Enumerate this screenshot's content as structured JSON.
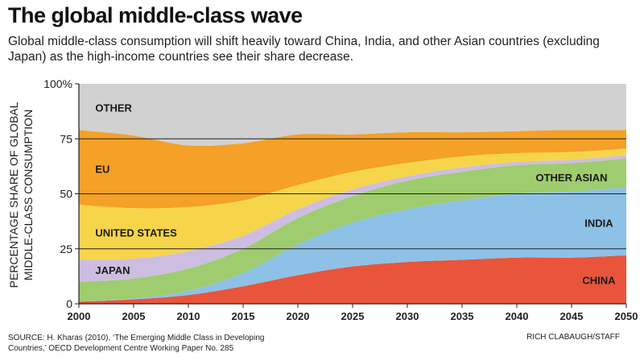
{
  "header": {
    "title": "The global middle-class wave",
    "subtitle": "Global middle-class consumption will shift heavily toward China, India, and other Asian countries (excluding Japan) as the high-income countries see their share decrease."
  },
  "footer": {
    "source_line1": "SOURCE: H. Kharas (2010), ‘The Emerging Middle Class in Developing",
    "source_line2": "Countries,’ OECD Development Centre Working Paper No. 285",
    "credit": "RICH CLABAUGH/STAFF"
  },
  "chart_data": {
    "type": "area",
    "stacked": true,
    "ylabel_line1": "PERCENTAGE SHARE OF GLOBAL",
    "ylabel_line2": "MIDDLE-CLASS CONSUMPTION",
    "xlim": [
      2000,
      2050
    ],
    "ylim": [
      0,
      100
    ],
    "x_ticks": [
      "2000",
      "2005",
      "2010",
      "2015",
      "2020",
      "2025",
      "2030",
      "2035",
      "2040",
      "2045",
      "2050"
    ],
    "y_ticks": [
      "0",
      "25",
      "50",
      "75",
      "100%"
    ],
    "x": [
      2000,
      2005,
      2010,
      2015,
      2020,
      2025,
      2030,
      2035,
      2040,
      2045,
      2050
    ],
    "series": [
      {
        "name": "CHINA",
        "color": "#e8553b",
        "values": [
          1,
          2,
          4,
          8,
          13,
          17,
          19,
          20,
          21,
          21,
          22
        ]
      },
      {
        "name": "INDIA",
        "color": "#8ec1e6",
        "values": [
          0,
          0.5,
          2,
          6,
          14,
          20,
          24,
          27,
          29,
          30,
          31
        ]
      },
      {
        "name": "OTHER ASIAN",
        "color": "#9fcc6e",
        "values": [
          9,
          9,
          10,
          11,
          12,
          12,
          13,
          13,
          13,
          13,
          13
        ]
      },
      {
        "name": "JAPAN",
        "color": "#cdbde0",
        "values": [
          10,
          9,
          8,
          6,
          4,
          3,
          2,
          2,
          1.5,
          1.5,
          1.5
        ]
      },
      {
        "name": "UNITED STATES",
        "color": "#f6d54a",
        "values": [
          25,
          23,
          20,
          16,
          11,
          8,
          6,
          5,
          4,
          3.5,
          3
        ]
      },
      {
        "name": "EU",
        "color": "#f5a027",
        "values": [
          34,
          33,
          28,
          26,
          23,
          17,
          14,
          11,
          10,
          10,
          8.5
        ]
      },
      {
        "name": "OTHER",
        "color": "#d1d1d1",
        "values": [
          21,
          23.5,
          28,
          27,
          23,
          23,
          22,
          22,
          21.5,
          21,
          21
        ]
      }
    ],
    "grid": "horizontal lines at 25, 50, 75"
  }
}
